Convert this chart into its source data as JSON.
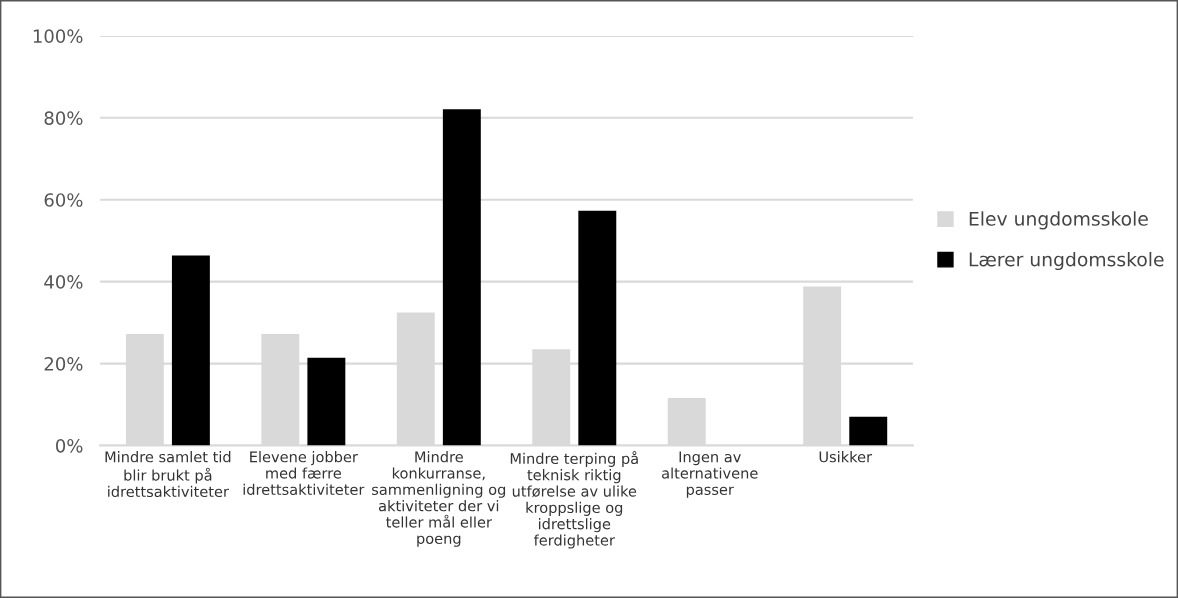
{
  "chart_data": {
    "type": "bar",
    "categories": [
      "Mindre samlet tid\nblir brukt på\nidrettsaktiviteter",
      "Elevene jobber\nmed færre\nidrettsaktiviteter",
      "Mindre\nkonkurranse,\nsammenligning og\naktiviteter der vi\nteller mål eller\npoeng",
      "Mindre terping på\nteknisk riktig\nutførelse av ulike\nkroppslige og\nidrettslige\nferdigheter",
      "Ingen av\nalternativene\npasser",
      "Usikker"
    ],
    "series": [
      {
        "name": "Elev ungdomsskole",
        "color": "#d9d9d9",
        "values": [
          27.2,
          27.2,
          32.5,
          23.5,
          11.6,
          38.8
        ]
      },
      {
        "name": "Lærer ungdomsskole",
        "color": "#000000",
        "values": [
          46.4,
          21.4,
          82.1,
          57.3,
          0,
          7.0
        ]
      }
    ],
    "ylim": [
      0,
      100
    ],
    "yticks": [
      {
        "value": 0,
        "label": "0%"
      },
      {
        "value": 20,
        "label": "20%"
      },
      {
        "value": 40,
        "label": "40%"
      },
      {
        "value": 60,
        "label": "60%"
      },
      {
        "value": 80,
        "label": "80%"
      },
      {
        "value": 100,
        "label": "100%"
      }
    ],
    "grid": "y",
    "legend": "right"
  }
}
